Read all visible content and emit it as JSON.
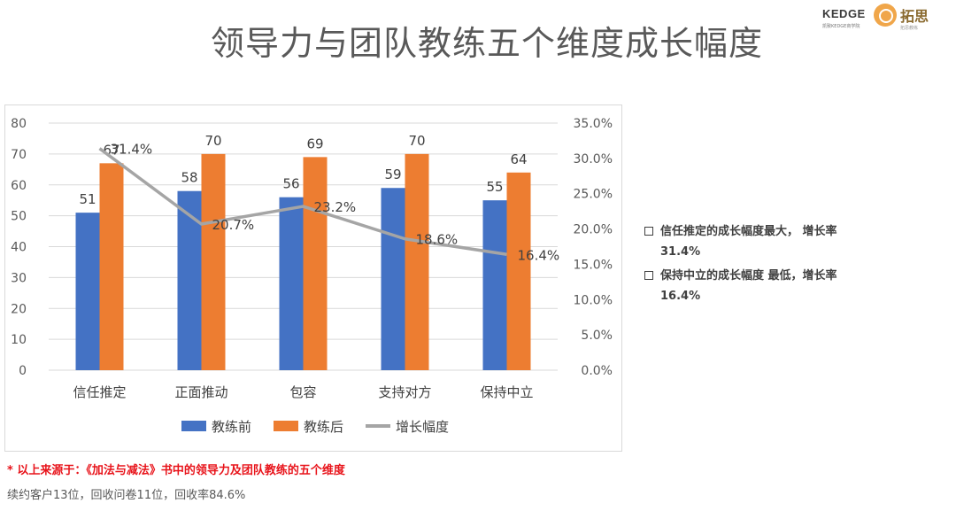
{
  "title": "领导力与团队教练五个维度成长幅度",
  "logos": {
    "kedge": "KEDGE",
    "kedge_sub": "凯致KEDGE商学院",
    "cn": "拓思",
    "cn_sub": "拓思教练"
  },
  "chart_data": {
    "type": "bar",
    "categories": [
      "信任推定",
      "正面推动",
      "包容",
      "支持对方",
      "保持中立"
    ],
    "series": [
      {
        "name": "教练前",
        "type": "bar",
        "color": "#4472C4",
        "values": [
          51,
          58,
          56,
          59,
          55
        ],
        "labels": [
          "51",
          "58",
          "56",
          "59",
          "55"
        ]
      },
      {
        "name": "教练后",
        "type": "bar",
        "color": "#ED7D31",
        "values": [
          67,
          70,
          69,
          70,
          64
        ],
        "labels": [
          "67",
          "70",
          "69",
          "70",
          "64"
        ]
      },
      {
        "name": "增长幅度",
        "type": "line",
        "axis": "right",
        "color": "#A5A5A5",
        "values": [
          31.4,
          20.7,
          23.2,
          18.6,
          16.4
        ],
        "labels": [
          "31.4%",
          "20.7%",
          "23.2%",
          "18.6%",
          "16.4%"
        ]
      }
    ],
    "y_left": {
      "min": 0,
      "max": 80,
      "step": 10,
      "ticks": [
        "0",
        "10",
        "20",
        "30",
        "40",
        "50",
        "60",
        "70",
        "80"
      ]
    },
    "y_right": {
      "min": 0,
      "max": 35,
      "step": 5,
      "ticks": [
        "0.0%",
        "5.0%",
        "10.0%",
        "15.0%",
        "20.0%",
        "25.0%",
        "30.0%",
        "35.0%"
      ]
    },
    "grid": true,
    "legend_position": "bottom"
  },
  "notes": [
    {
      "text": "信任推定的成长幅度最大， 增长率31.4%"
    },
    {
      "text": "保持中立的成长幅度 最低，增长率16.4%"
    }
  ],
  "source": "* 以上来源于：《加法与减法》书中的领导力及团队教练的五个维度",
  "stats": "续约客户13位，回收问卷11位，回收率84.6%"
}
